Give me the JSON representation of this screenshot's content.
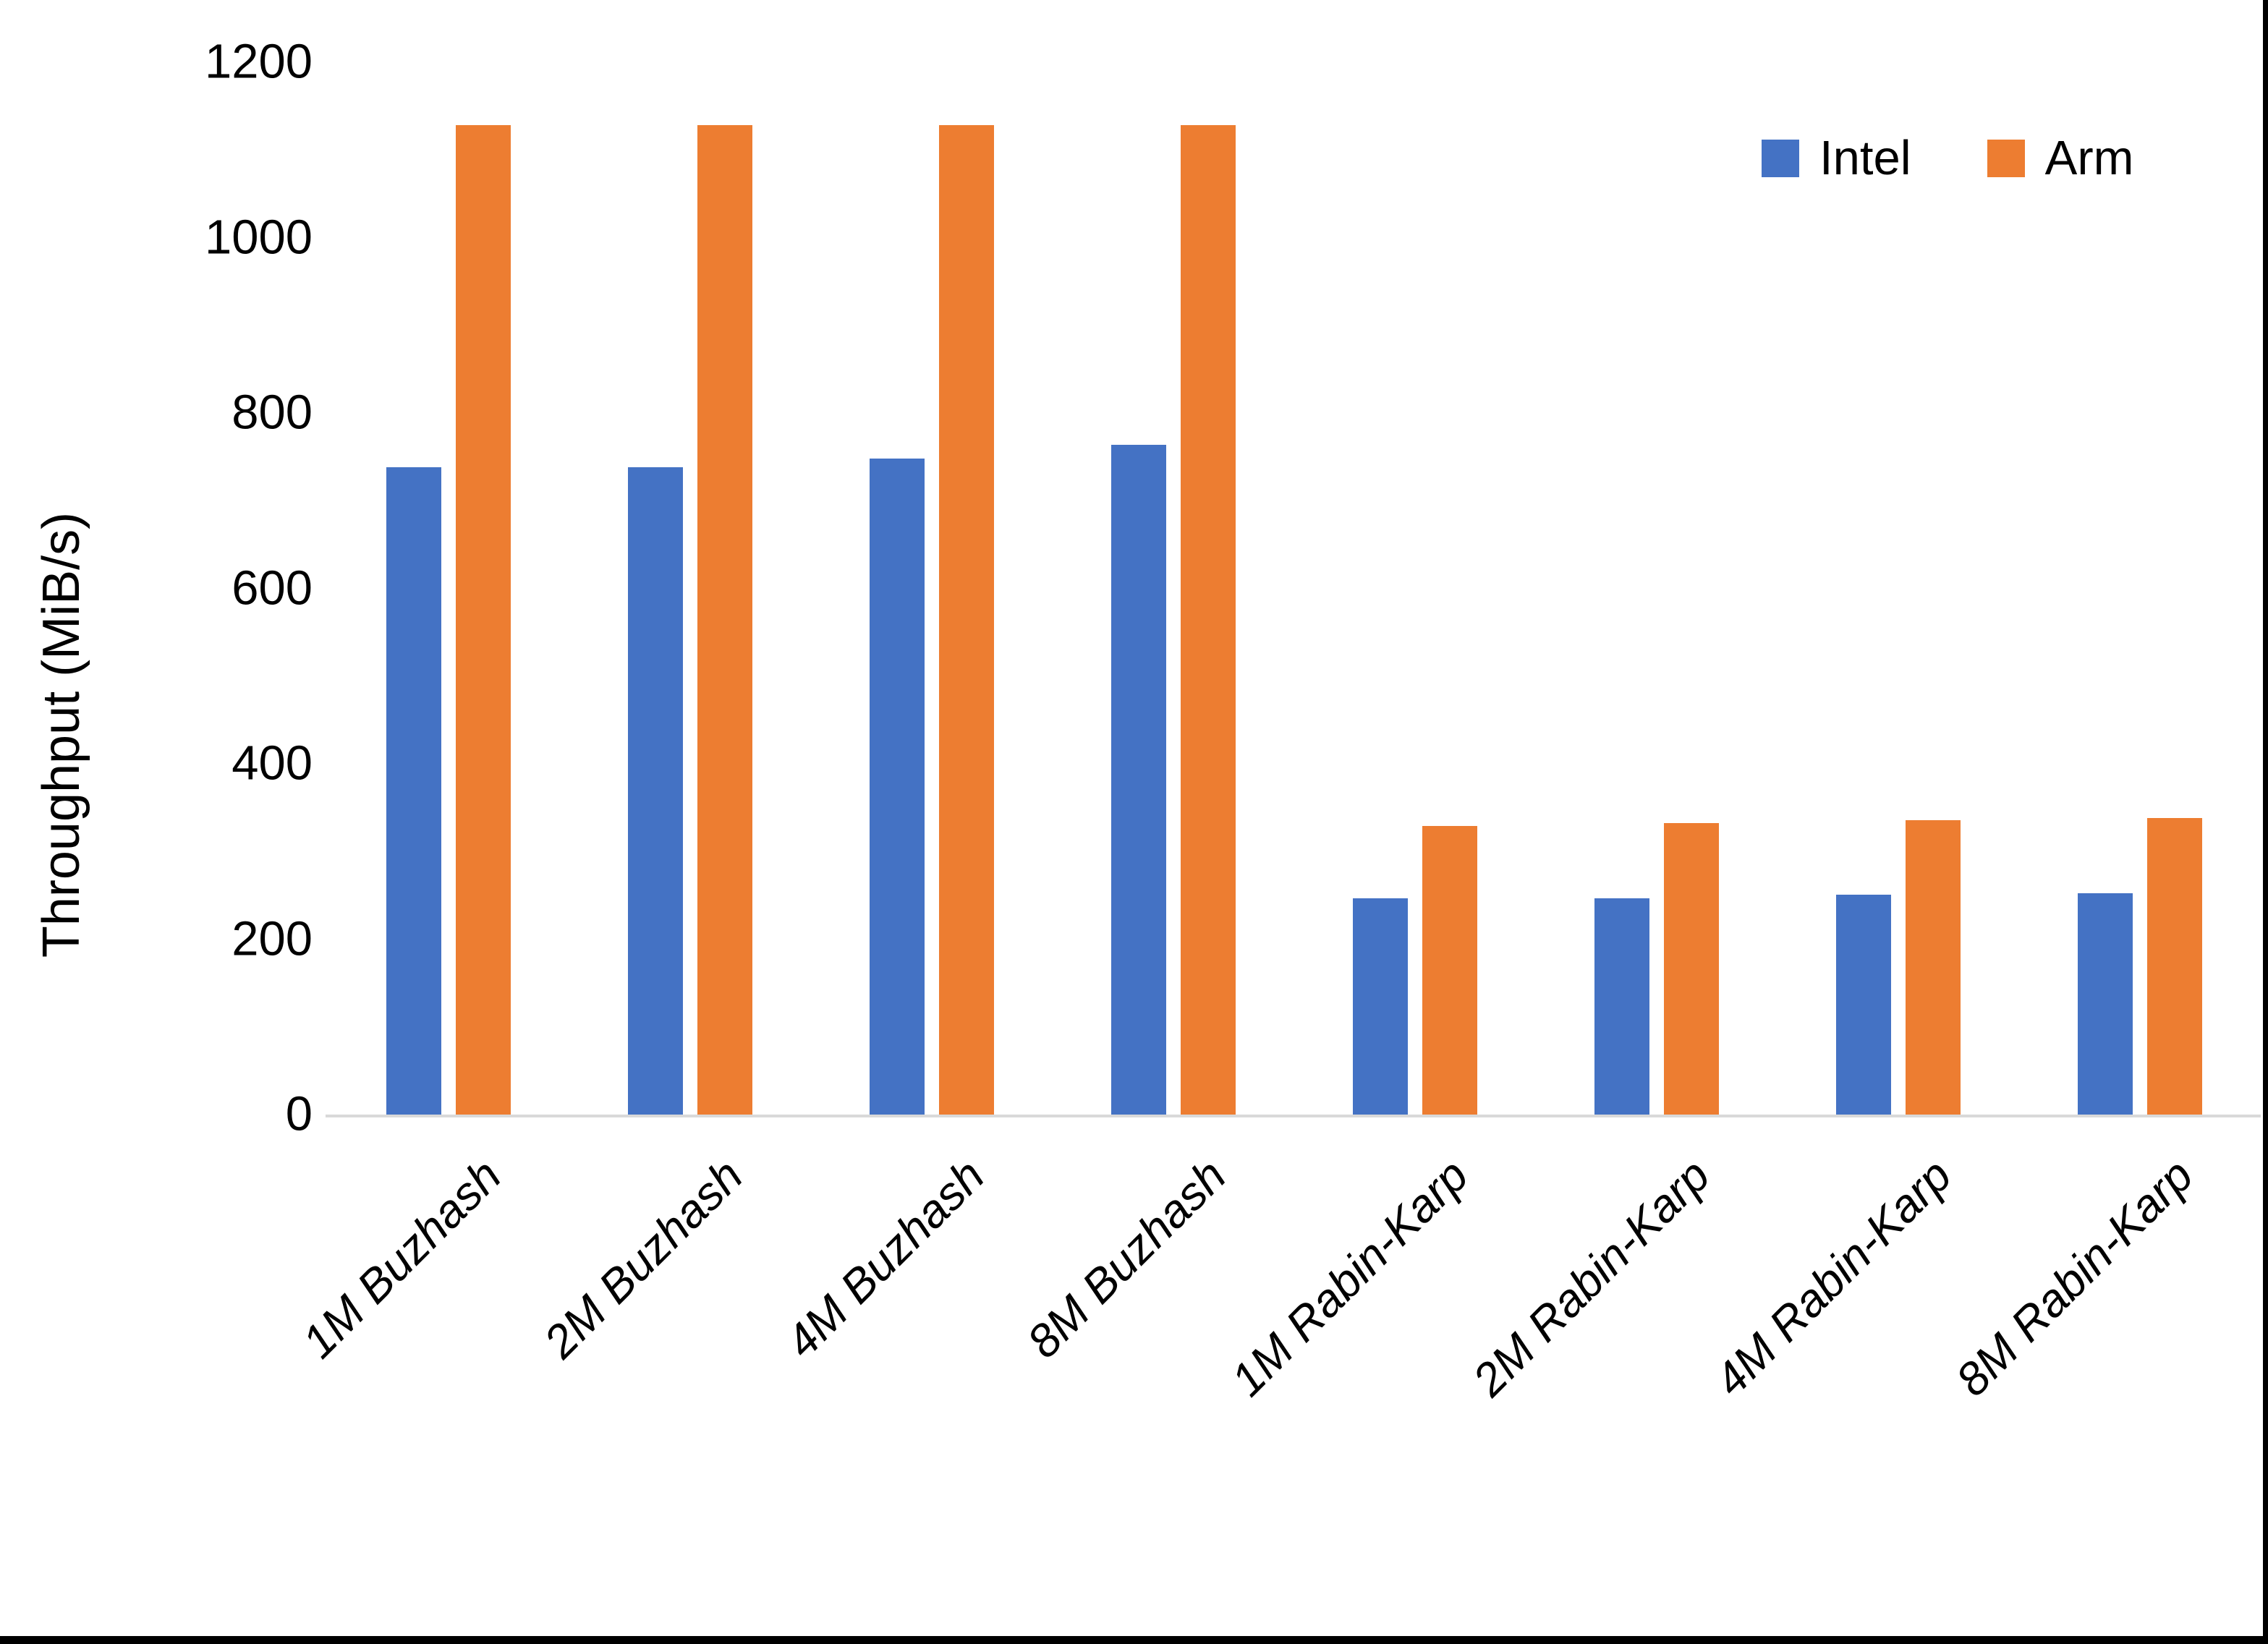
{
  "chart_data": {
    "type": "bar",
    "title": "",
    "xlabel": "",
    "ylabel": "Throughput (MiB/s)",
    "ylim": [
      0,
      1200
    ],
    "yticks": [
      0,
      200,
      400,
      600,
      800,
      1000,
      1200
    ],
    "grid": false,
    "legend_position": "top-right",
    "categories": [
      "1M Buzhash",
      "2M Buzhash",
      "4M Buzhash",
      "8M Buzhash",
      "1M Rabin-Karp",
      "2M Rabin-Karp",
      "4M Rabin-Karp",
      "8M Rabin-Karp"
    ],
    "series": [
      {
        "name": "Intel",
        "color": "#4472C4",
        "values": [
          740,
          740,
          750,
          765,
          248,
          248,
          252,
          254
        ]
      },
      {
        "name": "Arm",
        "color": "#ED7D31",
        "values": [
          1130,
          1130,
          1130,
          1130,
          331,
          334,
          337,
          340
        ]
      }
    ]
  },
  "colors": {
    "background": "#FFFFFF",
    "axis_line": "#D9D9D9",
    "text": "#000000",
    "border": "#000000"
  }
}
